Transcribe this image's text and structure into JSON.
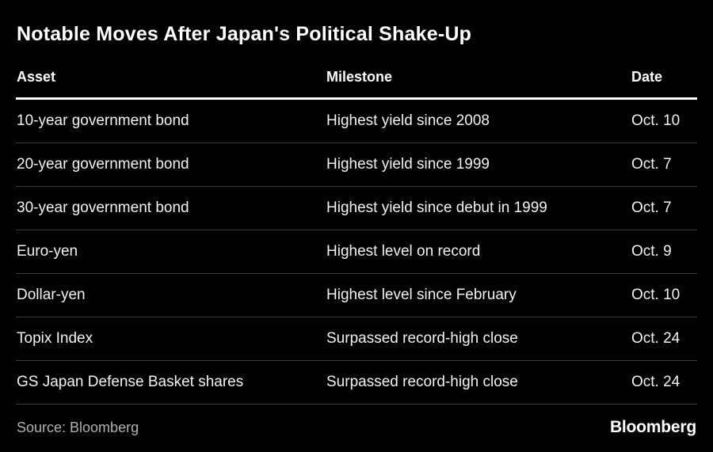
{
  "colors": {
    "background": "#000000",
    "heading": "#ffffff",
    "text": "#f2f2f2",
    "separator": "#3a3a3a",
    "header_rule": "#ffffff",
    "source_text": "#b0b0b0"
  },
  "footer": {
    "source": "Source: Bloomberg",
    "brand": "Bloomberg"
  },
  "chart_data": {
    "type": "table",
    "title": "Notable Moves After Japan's Political Shake-Up",
    "columns": [
      "Asset",
      "Milestone",
      "Date"
    ],
    "rows": [
      [
        "10-year government bond",
        "Highest yield since 2008",
        "Oct. 10"
      ],
      [
        "20-year government bond",
        "Highest yield since 1999",
        "Oct. 7"
      ],
      [
        "30-year government bond",
        "Highest yield since debut in 1999",
        "Oct. 7"
      ],
      [
        "Euro-yen",
        "Highest level on record",
        "Oct. 9"
      ],
      [
        "Dollar-yen",
        "Highest level since February",
        "Oct. 10"
      ],
      [
        "Topix Index",
        "Surpassed record-high close",
        "Oct. 24"
      ],
      [
        "GS Japan Defense Basket shares",
        "Surpassed record-high close",
        "Oct. 24"
      ]
    ],
    "source": "Source: Bloomberg",
    "brand": "Bloomberg",
    "layout": {
      "grid": "off",
      "legend": "none",
      "header_rule": "thick-white",
      "row_separator": "thin-gray"
    }
  }
}
